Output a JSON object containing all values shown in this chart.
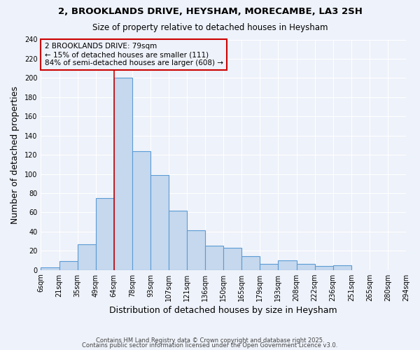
{
  "title": "2, BROOKLANDS DRIVE, HEYSHAM, MORECAMBE, LA3 2SH",
  "subtitle": "Size of property relative to detached houses in Heysham",
  "xlabel": "Distribution of detached houses by size in Heysham",
  "ylabel": "Number of detached properties",
  "bar_values": [
    3,
    9,
    27,
    75,
    200,
    124,
    99,
    62,
    41,
    25,
    23,
    14,
    6,
    10,
    6,
    4,
    5
  ],
  "bin_labels": [
    "6sqm",
    "21sqm",
    "35sqm",
    "49sqm",
    "64sqm",
    "78sqm",
    "93sqm",
    "107sqm",
    "121sqm",
    "136sqm",
    "150sqm",
    "165sqm",
    "179sqm",
    "193sqm",
    "208sqm",
    "222sqm",
    "236sqm",
    "251sqm",
    "265sqm",
    "280sqm",
    "294sqm"
  ],
  "n_bars": 17,
  "n_ticks": 21,
  "bar_color": "#c5d8ee",
  "bar_edge_color": "#5b9bd5",
  "highlight_bar_index": 4,
  "annotation_title": "2 BROOKLANDS DRIVE: 79sqm",
  "annotation_line1": "← 15% of detached houses are smaller (111)",
  "annotation_line2": "84% of semi-detached houses are larger (608) →",
  "annotation_box_color": "#cc0000",
  "vline_color": "#cc0000",
  "ylim": [
    0,
    240
  ],
  "yticks": [
    0,
    20,
    40,
    60,
    80,
    100,
    120,
    140,
    160,
    180,
    200,
    220,
    240
  ],
  "background_color": "#eef2fa",
  "grid_color": "#ffffff",
  "footer1": "Contains HM Land Registry data © Crown copyright and database right 2025.",
  "footer2": "Contains public sector information licensed under the Open Government Licence v3.0."
}
